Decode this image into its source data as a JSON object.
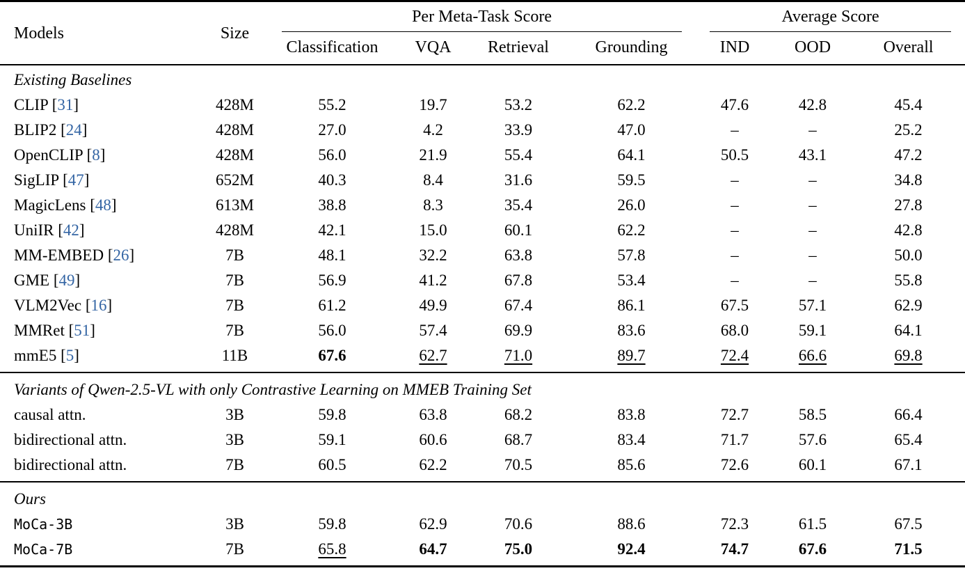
{
  "table": {
    "citation_color": "#3465a4",
    "headers": {
      "models": "Models",
      "size": "Size",
      "group_meta": "Per Meta-Task Score",
      "group_avg": "Average Score",
      "subcols": [
        "Classification",
        "VQA",
        "Retrieval",
        "Grounding",
        "IND",
        "OOD",
        "Overall"
      ]
    },
    "sections": [
      {
        "title": "Existing Baselines",
        "rows": [
          {
            "model": "CLIP",
            "cite": "31",
            "mono": false,
            "size": "428M",
            "values": [
              "55.2",
              "19.7",
              "53.2",
              "62.2",
              "47.6",
              "42.8",
              "45.4"
            ],
            "styles": [
              "",
              "",
              "",
              "",
              "",
              "",
              ""
            ]
          },
          {
            "model": "BLIP2",
            "cite": "24",
            "mono": false,
            "size": "428M",
            "values": [
              "27.0",
              "4.2",
              "33.9",
              "47.0",
              "–",
              "–",
              "25.2"
            ],
            "styles": [
              "",
              "",
              "",
              "",
              "",
              "",
              ""
            ]
          },
          {
            "model": "OpenCLIP",
            "cite": "8",
            "mono": false,
            "size": "428M",
            "values": [
              "56.0",
              "21.9",
              "55.4",
              "64.1",
              "50.5",
              "43.1",
              "47.2"
            ],
            "styles": [
              "",
              "",
              "",
              "",
              "",
              "",
              ""
            ]
          },
          {
            "model": "SigLIP",
            "cite": "47",
            "mono": false,
            "size": "652M",
            "values": [
              "40.3",
              "8.4",
              "31.6",
              "59.5",
              "–",
              "–",
              "34.8"
            ],
            "styles": [
              "",
              "",
              "",
              "",
              "",
              "",
              ""
            ]
          },
          {
            "model": "MagicLens",
            "cite": "48",
            "mono": false,
            "size": "613M",
            "values": [
              "38.8",
              "8.3",
              "35.4",
              "26.0",
              "–",
              "–",
              "27.8"
            ],
            "styles": [
              "",
              "",
              "",
              "",
              "",
              "",
              ""
            ]
          },
          {
            "model": "UniIR",
            "cite": "42",
            "mono": false,
            "size": "428M",
            "values": [
              "42.1",
              "15.0",
              "60.1",
              "62.2",
              "–",
              "–",
              "42.8"
            ],
            "styles": [
              "",
              "",
              "",
              "",
              "",
              "",
              ""
            ]
          },
          {
            "model": "MM-EMBED",
            "cite": "26",
            "mono": false,
            "size": "7B",
            "values": [
              "48.1",
              "32.2",
              "63.8",
              "57.8",
              "–",
              "–",
              "50.0"
            ],
            "styles": [
              "",
              "",
              "",
              "",
              "",
              "",
              ""
            ]
          },
          {
            "model": "GME",
            "cite": "49",
            "mono": false,
            "size": "7B",
            "values": [
              "56.9",
              "41.2",
              "67.8",
              "53.4",
              "–",
              "–",
              "55.8"
            ],
            "styles": [
              "",
              "",
              "",
              "",
              "",
              "",
              ""
            ]
          },
          {
            "model": "VLM2Vec",
            "cite": "16",
            "mono": false,
            "size": "7B",
            "values": [
              "61.2",
              "49.9",
              "67.4",
              "86.1",
              "67.5",
              "57.1",
              "62.9"
            ],
            "styles": [
              "",
              "",
              "",
              "",
              "",
              "",
              ""
            ]
          },
          {
            "model": "MMRet",
            "cite": "51",
            "mono": false,
            "size": "7B",
            "values": [
              "56.0",
              "57.4",
              "69.9",
              "83.6",
              "68.0",
              "59.1",
              "64.1"
            ],
            "styles": [
              "",
              "",
              "",
              "",
              "",
              "",
              ""
            ]
          },
          {
            "model": "mmE5",
            "cite": "5",
            "mono": false,
            "size": "11B",
            "values": [
              "67.6",
              "62.7",
              "71.0",
              "89.7",
              "72.4",
              "66.6",
              "69.8"
            ],
            "styles": [
              "b",
              "u",
              "u",
              "u",
              "u",
              "u",
              "u"
            ]
          }
        ]
      },
      {
        "title": "Variants of Qwen-2.5-VL with only Contrastive Learning on MMEB Training Set",
        "rows": [
          {
            "model": "causal attn.",
            "cite": "",
            "mono": false,
            "size": "3B",
            "values": [
              "59.8",
              "63.8",
              "68.2",
              "83.8",
              "72.7",
              "58.5",
              "66.4"
            ],
            "styles": [
              "",
              "",
              "",
              "",
              "",
              "",
              ""
            ]
          },
          {
            "model": "bidirectional attn.",
            "cite": "",
            "mono": false,
            "size": "3B",
            "values": [
              "59.1",
              "60.6",
              "68.7",
              "83.4",
              "71.7",
              "57.6",
              "65.4"
            ],
            "styles": [
              "",
              "",
              "",
              "",
              "",
              "",
              ""
            ]
          },
          {
            "model": "bidirectional attn.",
            "cite": "",
            "mono": false,
            "size": "7B",
            "values": [
              "60.5",
              "62.2",
              "70.5",
              "85.6",
              "72.6",
              "60.1",
              "67.1"
            ],
            "styles": [
              "",
              "",
              "",
              "",
              "",
              "",
              ""
            ]
          }
        ]
      },
      {
        "title": "Ours",
        "rows": [
          {
            "model": "MoCa-3B",
            "cite": "",
            "mono": true,
            "size": "3B",
            "values": [
              "59.8",
              "62.9",
              "70.6",
              "88.6",
              "72.3",
              "61.5",
              "67.5"
            ],
            "styles": [
              "",
              "",
              "",
              "",
              "",
              "",
              ""
            ]
          },
          {
            "model": "MoCa-7B",
            "cite": "",
            "mono": true,
            "size": "7B",
            "values": [
              "65.8",
              "64.7",
              "75.0",
              "92.4",
              "74.7",
              "67.6",
              "71.5"
            ],
            "styles": [
              "u",
              "b",
              "b",
              "b",
              "b",
              "b",
              "b"
            ]
          }
        ]
      }
    ]
  }
}
